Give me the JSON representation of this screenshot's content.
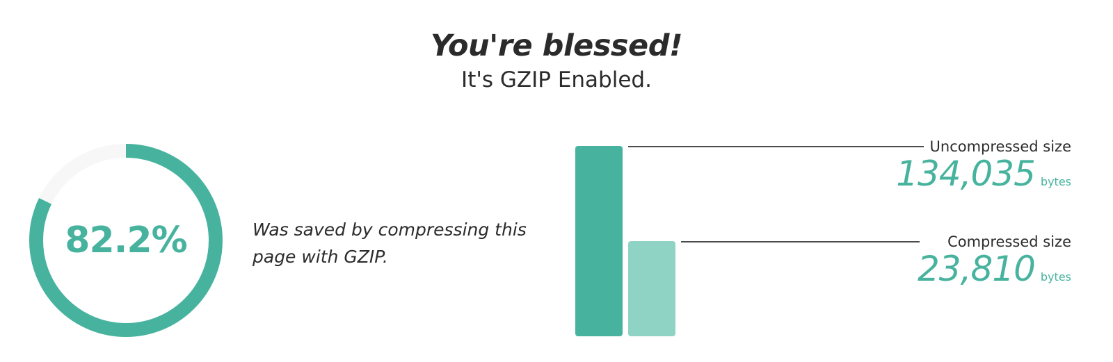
{
  "header": {
    "title": "You're blessed!",
    "subtitle": "It's GZIP Enabled."
  },
  "savings": {
    "percent_label": "82.2%",
    "percent_value": 82.2,
    "description": "Was saved by compressing this page with GZIP."
  },
  "sizes": {
    "uncompressed": {
      "label": "Uncompressed size",
      "value_label": "134,035",
      "value": 134035,
      "unit": "bytes"
    },
    "compressed": {
      "label": "Compressed size",
      "value_label": "23,810",
      "value": 23810,
      "unit": "bytes"
    }
  },
  "colors": {
    "accent": "#47b39e",
    "accent_light": "#8fd3c5",
    "track": "#f7f7f7",
    "text": "#2b2b2b"
  },
  "chart_data": {
    "type": "bar",
    "categories": [
      "Uncompressed size",
      "Compressed size"
    ],
    "values": [
      134035,
      23810
    ],
    "ylim": [
      0,
      134035
    ],
    "grid": false
  }
}
